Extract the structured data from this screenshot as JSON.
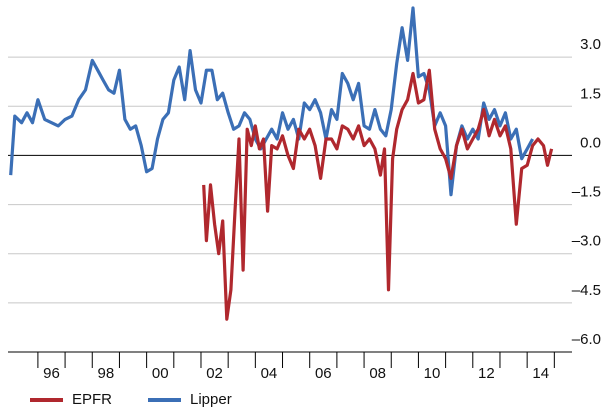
{
  "chart_data": {
    "type": "line",
    "xlim": [
      1994.9,
      2015.65
    ],
    "ylim": [
      -6,
      4.5
    ],
    "xticks": [
      {
        "value": 1996.5,
        "label": "96"
      },
      {
        "value": 1998.5,
        "label": "98"
      },
      {
        "value": 2000.5,
        "label": "00"
      },
      {
        "value": 2002.5,
        "label": "02"
      },
      {
        "value": 2004.5,
        "label": "04"
      },
      {
        "value": 2006.5,
        "label": "06"
      },
      {
        "value": 2008.5,
        "label": "08"
      },
      {
        "value": 2010.5,
        "label": "10"
      },
      {
        "value": 2012.5,
        "label": "12"
      },
      {
        "value": 2014.5,
        "label": "14"
      }
    ],
    "xminor_ticks": [
      1996,
      1997,
      1998,
      1999,
      2000,
      2001,
      2002,
      2003,
      2004,
      2005,
      2006,
      2007,
      2008,
      2009,
      2010,
      2011,
      2012,
      2013,
      2014,
      2015
    ],
    "yticks": [
      {
        "value": 3,
        "label": "3.0"
      },
      {
        "value": 1.5,
        "label": "1.5"
      },
      {
        "value": 0,
        "label": "0.0"
      },
      {
        "value": -1.5,
        "label": "–1.5"
      },
      {
        "value": -3,
        "label": "–3.0"
      },
      {
        "value": -4.5,
        "label": "–4.5"
      },
      {
        "value": -6,
        "label": "–6.0"
      }
    ],
    "grid": true,
    "legend": "bottom",
    "series": [
      {
        "name": "EPFR",
        "color": "#b0282e",
        "x": [
          2002.1,
          2002.2,
          2002.35,
          2002.5,
          2002.65,
          2002.8,
          2002.95,
          2003.1,
          2003.25,
          2003.4,
          2003.55,
          2003.7,
          2003.85,
          2004.0,
          2004.15,
          2004.3,
          2004.45,
          2004.6,
          2004.8,
          2005.0,
          2005.2,
          2005.4,
          2005.6,
          2005.8,
          2006.0,
          2006.2,
          2006.4,
          2006.6,
          2006.8,
          2007.0,
          2007.2,
          2007.4,
          2007.6,
          2007.8,
          2008.0,
          2008.2,
          2008.4,
          2008.6,
          2008.75,
          2008.9,
          2009.05,
          2009.2,
          2009.4,
          2009.6,
          2009.8,
          2010.0,
          2010.2,
          2010.4,
          2010.6,
          2010.8,
          2011.0,
          2011.2,
          2011.4,
          2011.6,
          2011.8,
          2012.0,
          2012.2,
          2012.4,
          2012.6,
          2012.8,
          2013.0,
          2013.2,
          2013.4,
          2013.6,
          2013.8,
          2014.0,
          2014.2,
          2014.4,
          2014.6,
          2014.75,
          2014.9
        ],
        "values": [
          -0.9,
          -2.6,
          -0.9,
          -2.1,
          -3.0,
          -2.0,
          -5.0,
          -4.1,
          -1.7,
          0.5,
          -3.5,
          0.8,
          0.3,
          0.9,
          0.2,
          0.5,
          -1.7,
          0.3,
          0.2,
          0.6,
          0.0,
          -0.4,
          0.8,
          0.5,
          0.8,
          0.3,
          -0.7,
          0.5,
          0.5,
          0.2,
          0.9,
          0.8,
          0.5,
          0.9,
          0.3,
          0.5,
          0.2,
          -0.6,
          0.2,
          -4.1,
          -0.1,
          0.8,
          1.4,
          1.7,
          2.5,
          1.6,
          1.7,
          2.6,
          0.8,
          0.2,
          -0.1,
          -0.7,
          0.3,
          0.8,
          0.2,
          0.5,
          0.8,
          1.4,
          0.6,
          1.1,
          0.6,
          0.9,
          0.2,
          -2.1,
          -0.4,
          -0.3,
          0.3,
          0.5,
          0.3,
          -0.3,
          0.2
        ]
      },
      {
        "name": "Lipper",
        "color": "#3b6fb6",
        "x": [
          1995.0,
          1995.15,
          1995.4,
          1995.6,
          1995.8,
          1996.0,
          1996.25,
          1996.5,
          1996.75,
          1997.0,
          1997.25,
          1997.5,
          1997.75,
          1998.0,
          1998.2,
          1998.4,
          1998.6,
          1998.8,
          1999.0,
          1999.2,
          1999.4,
          1999.6,
          1999.8,
          2000.0,
          2000.2,
          2000.4,
          2000.6,
          2000.8,
          2001.0,
          2001.2,
          2001.4,
          2001.6,
          2001.8,
          2002.0,
          2002.2,
          2002.4,
          2002.6,
          2002.8,
          2003.0,
          2003.2,
          2003.4,
          2003.6,
          2003.8,
          2004.0,
          2004.2,
          2004.4,
          2004.6,
          2004.8,
          2005.0,
          2005.2,
          2005.4,
          2005.6,
          2005.8,
          2006.0,
          2006.2,
          2006.4,
          2006.6,
          2006.8,
          2007.0,
          2007.2,
          2007.4,
          2007.6,
          2007.8,
          2008.0,
          2008.2,
          2008.4,
          2008.6,
          2008.8,
          2009.0,
          2009.2,
          2009.4,
          2009.6,
          2009.8,
          2010.0,
          2010.2,
          2010.4,
          2010.6,
          2010.8,
          2011.0,
          2011.2,
          2011.4,
          2011.6,
          2011.8,
          2012.0,
          2012.2,
          2012.4,
          2012.6,
          2012.8,
          2013.0,
          2013.2,
          2013.4,
          2013.6,
          2013.8,
          2014.0,
          2014.2
        ],
        "values": [
          -0.6,
          1.2,
          1.0,
          1.3,
          1.0,
          1.7,
          1.1,
          1.0,
          0.9,
          1.1,
          1.2,
          1.7,
          2.0,
          2.9,
          2.6,
          2.3,
          2.0,
          1.9,
          2.6,
          1.1,
          0.8,
          0.9,
          0.3,
          -0.5,
          -0.4,
          0.5,
          1.1,
          1.3,
          2.3,
          2.7,
          1.7,
          3.2,
          2.0,
          1.6,
          2.6,
          2.6,
          1.7,
          1.9,
          1.3,
          0.8,
          0.9,
          1.3,
          1.1,
          0.5,
          0.2,
          0.5,
          0.8,
          0.5,
          1.3,
          0.8,
          1.1,
          0.5,
          1.6,
          1.4,
          1.7,
          1.3,
          0.5,
          1.4,
          1.1,
          2.5,
          2.2,
          1.7,
          2.2,
          0.9,
          0.8,
          1.4,
          0.8,
          0.6,
          1.4,
          2.8,
          3.9,
          2.9,
          4.5,
          2.4,
          2.5,
          2.0,
          0.9,
          1.3,
          0.9,
          -1.2,
          0.3,
          0.9,
          0.5,
          0.8,
          0.5,
          1.6,
          1.1,
          1.4,
          0.9,
          1.3,
          0.5,
          0.8,
          -0.1,
          0.2,
          0.5
        ]
      }
    ]
  }
}
